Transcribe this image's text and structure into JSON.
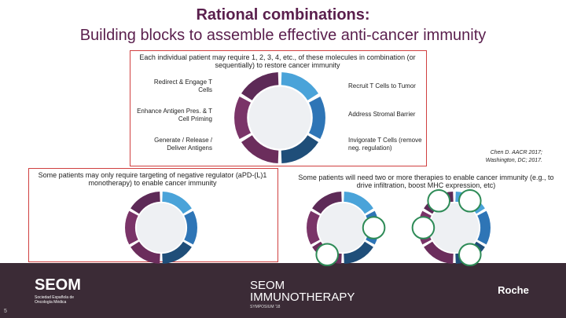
{
  "header": {
    "title_line1": "Rational combinations:",
    "title_line2": "Building blocks to assemble effective anti-cancer immunity"
  },
  "intro": "Each individual patient may require 1, 2, 3, 4, etc., of these molecules in combination (or sequentially) to restore cancer immunity",
  "labels": {
    "left": [
      "Redirect & Engage T Cells",
      "Enhance Antigen Pres. & T Cell Priming",
      "Generate / Release / Deliver Antigens"
    ],
    "right": [
      "Recruit T Cells to Tumor",
      "Address Stromal Barrier",
      "Invigorate T Cells (remove neg. regulation)"
    ]
  },
  "citation": "Chen D. AACR 2017; Washington, DC; 2017.",
  "panels": {
    "left": "Some patients may only require targeting of negative regulator (aPD-(L)1 monotherapy) to enable cancer immunity",
    "right": "Some patients will need two or more therapies to enable cancer immunity (e.g., to drive infiltration, boost MHC expression, etc)"
  },
  "footer": {
    "seom": "SEOM",
    "seom_sub": "Sociedad Española de Oncología Médica",
    "event": "SEOM IMMUNOTHERAPY",
    "event_sub": "SYMPOSIUM '18",
    "roche": "Roche",
    "page": "5"
  }
}
